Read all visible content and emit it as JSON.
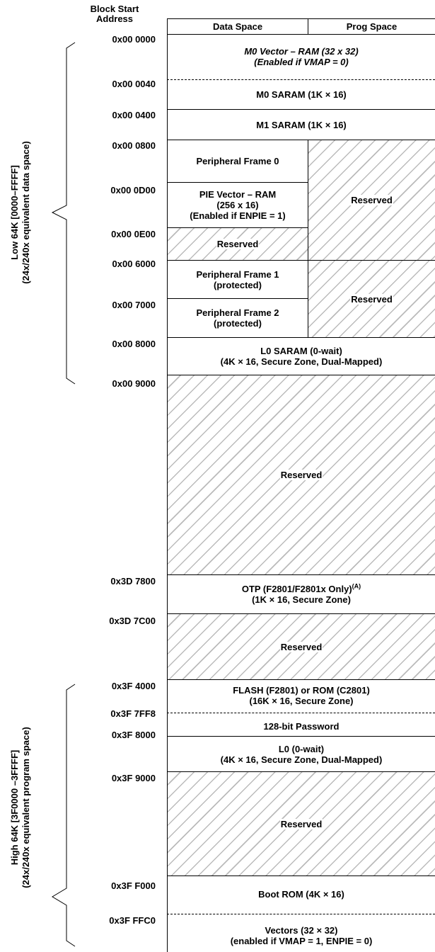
{
  "header": {
    "block_start_address": "Block Start\nAddress",
    "data_space": "Data Space",
    "prog_space": "Prog Space"
  },
  "addresses": {
    "a0000": "0x00 0000",
    "a0040": "0x00 0040",
    "a0400": "0x00 0400",
    "a0800": "0x00 0800",
    "a0D00": "0x00 0D00",
    "a0E00": "0x00 0E00",
    "a6000": "0x00 6000",
    "a7000": "0x00 7000",
    "a8000": "0x00 8000",
    "a9000": "0x00 9000",
    "a3D7800": "0x3D 7800",
    "a3D7C00": "0x3D 7C00",
    "a3F4000": "0x3F 4000",
    "a3F7FF8": "0x3F 7FF8",
    "a3F8000": "0x3F 8000",
    "a3F9000": "0x3F 9000",
    "a3FF000": "0x3F F000",
    "a3FFFC0": "0x3F FFC0"
  },
  "side_labels": {
    "low_line1": "Low 64K [0000–FFFF]",
    "low_line2": "(24x/240x equivalent data space)",
    "high_line1": "High 64K [3F0000 –3FFFF]",
    "high_line2": "(24x/240x equivalent program space)"
  },
  "blocks": {
    "m0_vector_l1": "M0 Vector – RAM (32 x 32)",
    "m0_vector_l2": "(Enabled if VMAP = 0)",
    "m0_saram": "M0 SARAM (1K × 16)",
    "m1_saram": "M1 SARAM (1K × 16)",
    "periph_frame0": "Peripheral Frame 0",
    "pie_l1": "PIE Vector – RAM",
    "pie_l2": "(256 x 16)",
    "pie_l3": "(Enabled if ENPIE = 1)",
    "reserved": "Reserved",
    "periph_frame1_l1": "Peripheral Frame 1",
    "periph_frame1_l2": "(protected)",
    "periph_frame2_l1": "Peripheral Frame 2",
    "periph_frame2_l2": "(protected)",
    "l0_saram_l1": "L0 SARAM (0-wait)",
    "l0_saram_l2": "(4K × 16, Secure Zone, Dual-Mapped)",
    "otp_l1": "OTP (F2801/F2801x Only)",
    "otp_note": "(A)",
    "otp_l2": "(1K × 16, Secure Zone)",
    "flash_l1": "FLASH (F2801) or ROM (C2801)",
    "flash_l2": "(16K × 16, Secure Zone)",
    "password": "128-bit Password",
    "l0_l1": "L0 (0-wait)",
    "l0_l2": "(4K × 16, Secure Zone, Dual-Mapped)",
    "boot_rom": "Boot ROM (4K × 16)",
    "vectors_l1": "Vectors (32 × 32)",
    "vectors_l2": "(enabled if VMAP = 1, ENPIE = 0)"
  }
}
